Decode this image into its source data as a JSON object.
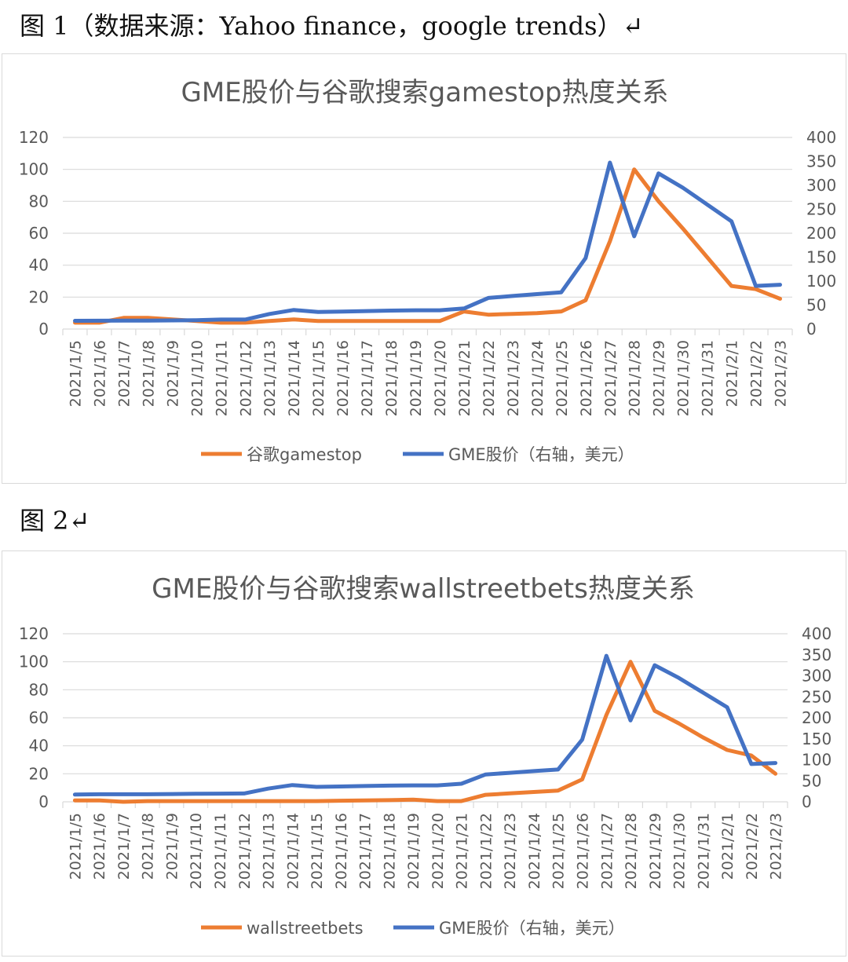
{
  "captions": {
    "figure1": "图 1（数据来源：Yahoo finance，google trends）↵",
    "figure2": "图 2↵"
  },
  "colors": {
    "orange": "#ED7D31",
    "blue": "#4472C4",
    "grid": "#d9d9d9",
    "axis_text": "#595959"
  },
  "chart_data": [
    {
      "type": "line",
      "title": "GME股价与谷歌搜索gamestop热度关系",
      "categories": [
        "2021/1/5",
        "2021/1/6",
        "2021/1/7",
        "2021/1/8",
        "2021/1/9",
        "2021/1/10",
        "2021/1/11",
        "2021/1/12",
        "2021/1/13",
        "2021/1/14",
        "2021/1/15",
        "2021/1/16",
        "2021/1/17",
        "2021/1/18",
        "2021/1/19",
        "2021/1/20",
        "2021/1/21",
        "2021/1/22",
        "2021/1/23",
        "2021/1/24",
        "2021/1/25",
        "2021/1/26",
        "2021/1/27",
        "2021/1/28",
        "2021/1/29",
        "2021/1/30",
        "2021/1/31",
        "2021/2/1",
        "2021/2/2",
        "2021/2/3"
      ],
      "left_axis": {
        "ylim": [
          0,
          120
        ],
        "ticks": [
          "0",
          "20",
          "40",
          "60",
          "80",
          "100",
          "120"
        ]
      },
      "right_axis": {
        "ylim": [
          0,
          400
        ],
        "ticks": [
          "0",
          "50",
          "100",
          "150",
          "200",
          "250",
          "300",
          "350",
          "400"
        ]
      },
      "legend_position": "bottom",
      "series": [
        {
          "name": "谷歌gamestop",
          "axis": "left",
          "color": "#ED7D31",
          "values": [
            4,
            4,
            7,
            7,
            6,
            5,
            4,
            4,
            5,
            6,
            5,
            5,
            5,
            5,
            5,
            5,
            11,
            9,
            9.5,
            10,
            11,
            18,
            55,
            100,
            80,
            63,
            45,
            27,
            25,
            19
          ]
        },
        {
          "name": "GME股价（右轴，美元）",
          "axis": "right",
          "color": "#4472C4",
          "values": [
            17.2,
            17.4,
            17.7,
            17.7,
            18,
            18.5,
            19.9,
            19.9,
            31.4,
            39.9,
            35.5,
            36.5,
            37.5,
            38.5,
            39.1,
            39.1,
            43,
            65,
            69,
            73,
            76.8,
            147.98,
            347.51,
            193.6,
            325,
            295,
            260,
            225,
            90,
            92.4
          ]
        }
      ]
    },
    {
      "type": "line",
      "title": "GME股价与谷歌搜索wallstreetbets热度关系",
      "categories": [
        "2021/1/5",
        "2021/1/6",
        "2021/1/7",
        "2021/1/8",
        "2021/1/9",
        "2021/1/10",
        "2021/1/11",
        "2021/1/12",
        "2021/1/13",
        "2021/1/14",
        "2021/1/15",
        "2021/1/16",
        "2021/1/17",
        "2021/1/18",
        "2021/1/19",
        "2021/1/20",
        "2021/1/21",
        "2021/1/22",
        "2021/1/23",
        "2021/1/24",
        "2021/1/25",
        "2021/1/26",
        "2021/1/27",
        "2021/1/28",
        "2021/1/29",
        "2021/1/30",
        "2021/1/31",
        "2021/2/1",
        "2021/2/2",
        "2021/2/3"
      ],
      "left_axis": {
        "ylim": [
          0,
          120
        ],
        "ticks": [
          "0",
          "20",
          "40",
          "60",
          "80",
          "100",
          "120"
        ]
      },
      "right_axis": {
        "ylim": [
          0,
          400
        ],
        "ticks": [
          "0",
          "50",
          "100",
          "150",
          "200",
          "250",
          "300",
          "350",
          "400"
        ]
      },
      "legend_position": "bottom",
      "series": [
        {
          "name": "wallstreetbets",
          "axis": "left",
          "color": "#ED7D31",
          "values": [
            1,
            1,
            0,
            0.5,
            0.5,
            0.5,
            0.5,
            0.5,
            0.5,
            0.5,
            0.5,
            0.8,
            1,
            1.2,
            1.5,
            0.5,
            0.5,
            5,
            6,
            7,
            8,
            16,
            62,
            100,
            65,
            56,
            46,
            37,
            33,
            20
          ]
        },
        {
          "name": "GME股价（右轴，美元）",
          "axis": "right",
          "color": "#4472C4",
          "values": [
            17.2,
            18,
            18,
            18,
            18.5,
            19,
            19.5,
            19.9,
            31.4,
            39.9,
            35.5,
            36.5,
            37.5,
            38.5,
            39.1,
            39.1,
            43,
            65,
            69,
            73,
            76.8,
            147.98,
            347.51,
            193.6,
            325,
            295,
            260,
            225,
            90,
            92.4
          ]
        }
      ]
    }
  ]
}
